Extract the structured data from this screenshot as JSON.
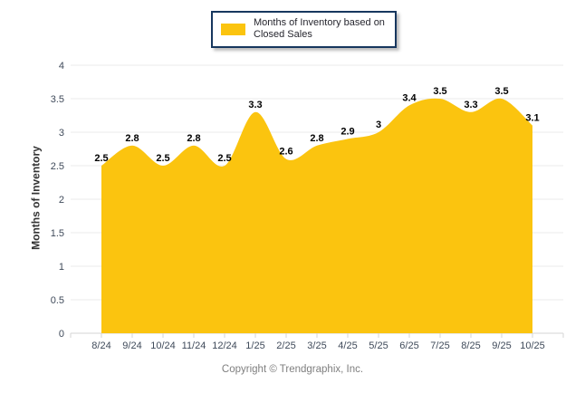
{
  "legend": {
    "label": "Months of Inventory based on Closed Sales"
  },
  "footer": {
    "copyright": "Copyright © Trendgraphix, Inc."
  },
  "chart_data": {
    "type": "area",
    "categories": [
      "8/24",
      "9/24",
      "10/24",
      "11/24",
      "12/24",
      "1/25",
      "2/25",
      "3/25",
      "4/25",
      "5/25",
      "6/25",
      "7/25",
      "8/25",
      "9/25",
      "10/25"
    ],
    "series": [
      {
        "name": "Months of Inventory based on Closed Sales",
        "values": [
          2.5,
          2.8,
          2.5,
          2.8,
          2.5,
          3.3,
          2.6,
          2.8,
          2.9,
          3,
          3.4,
          3.5,
          3.3,
          3.5,
          3.1
        ],
        "color": "#FBC40F"
      }
    ],
    "title": "",
    "xlabel": "",
    "ylabel": "Months of Inventory",
    "ylim": [
      0,
      4
    ],
    "ytick_step": 0.5,
    "grid": true,
    "legend_position": "top-center",
    "data_labels": true,
    "curve": "smooth",
    "colors": {
      "gridline": "#EBEBEB",
      "axis_line": "#D6D6D6",
      "tick_mark": "#D6D6D6",
      "tick_label": "#3F4A5A",
      "data_label": "#000000",
      "legend_border": "#17375E",
      "copyright_text": "#7F7F7F"
    }
  }
}
